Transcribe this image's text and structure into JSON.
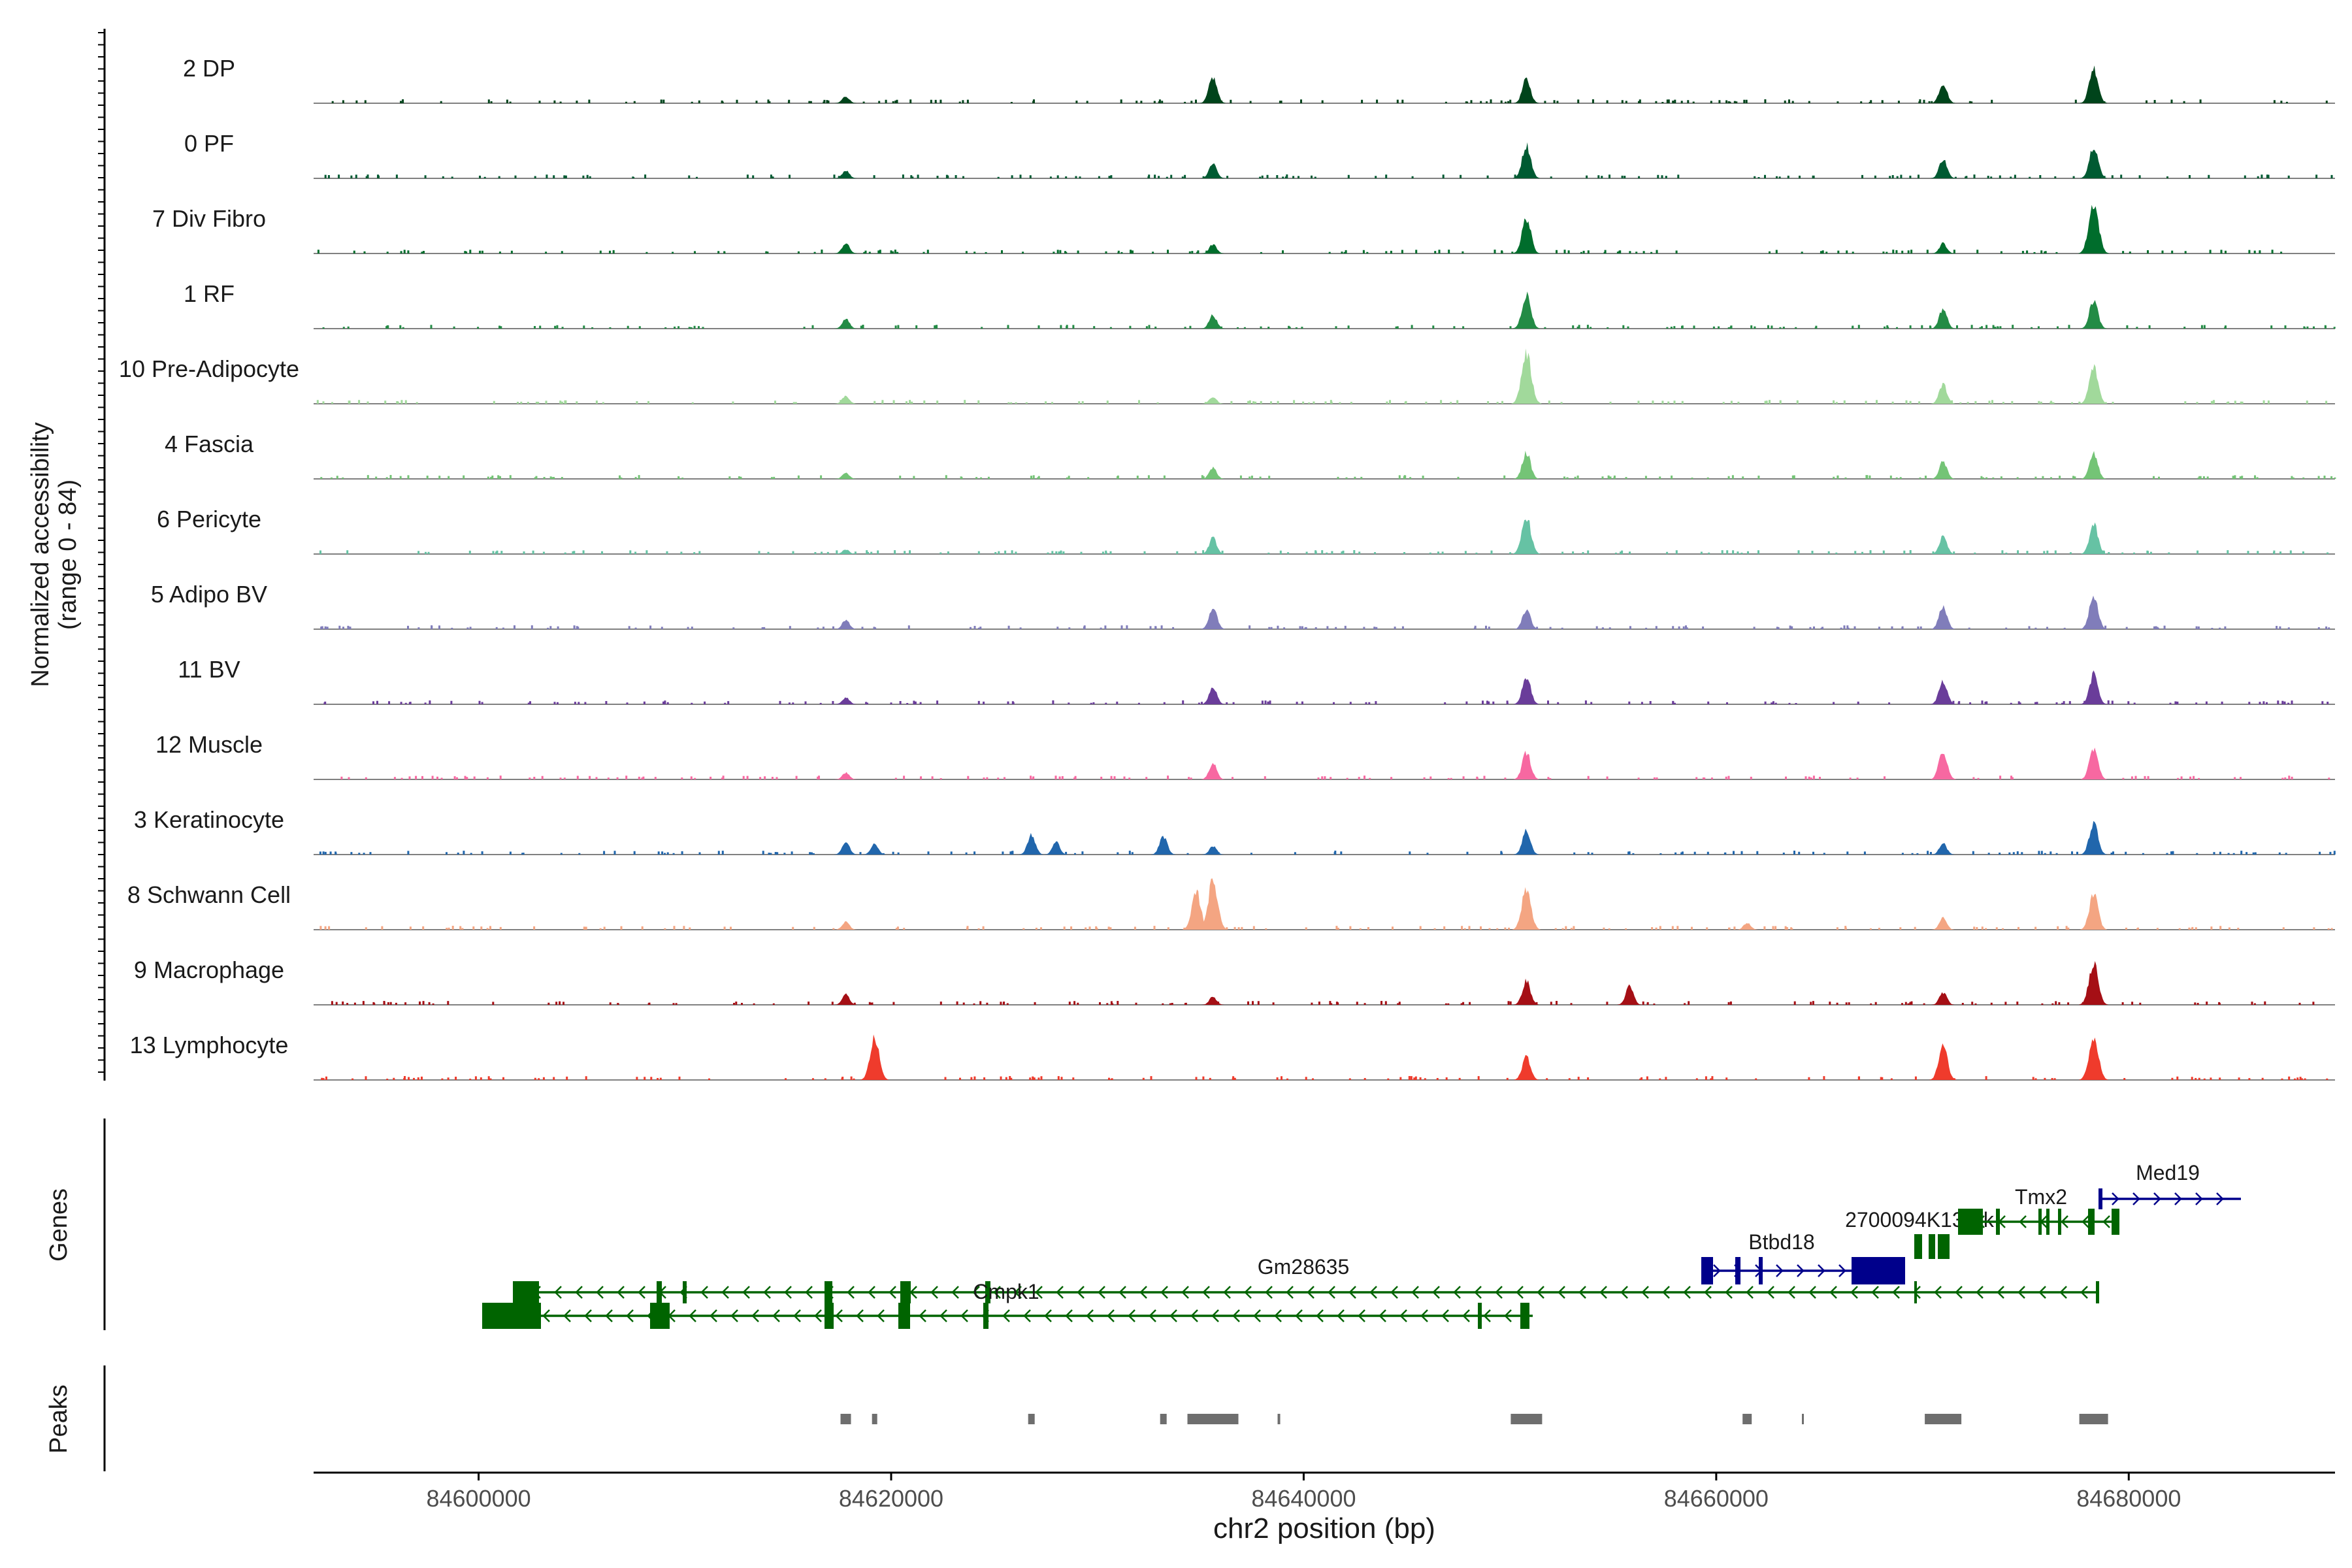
{
  "chart_data": {
    "type": "area",
    "title": "",
    "ylabel": "Normalized accessibility",
    "ylabel_range": "(range 0 - 84)",
    "ylim": [
      0,
      84
    ],
    "xlabel": "chr2 position (bp)",
    "xlim": [
      84592000,
      84690000
    ],
    "xticks": [
      84600000,
      84620000,
      84640000,
      84660000,
      84680000
    ],
    "xtick_labels": [
      "84600000",
      "84620000",
      "84640000",
      "84660000",
      "84680000"
    ],
    "peak_positions": [
      84617800,
      84619200,
      84626800,
      84633200,
      84635600,
      84650800,
      84661500,
      84671000,
      84678300
    ],
    "series": [
      {
        "name": "2 DP",
        "color": "#00441b",
        "peaks": [
          {
            "x": 84617800,
            "h": 0.12
          },
          {
            "x": 84635600,
            "h": 0.45
          },
          {
            "x": 84650800,
            "h": 0.42
          },
          {
            "x": 84671000,
            "h": 0.35
          },
          {
            "x": 84678300,
            "h": 0.62
          }
        ]
      },
      {
        "name": "0 PF",
        "color": "#005a32",
        "peaks": [
          {
            "x": 84617800,
            "h": 0.14
          },
          {
            "x": 84635600,
            "h": 0.27
          },
          {
            "x": 84650800,
            "h": 0.58
          },
          {
            "x": 84671000,
            "h": 0.34
          },
          {
            "x": 84678300,
            "h": 0.58
          }
        ]
      },
      {
        "name": "7 Div Fibro",
        "color": "#006d2c",
        "peaks": [
          {
            "x": 84617800,
            "h": 0.18
          },
          {
            "x": 84635600,
            "h": 0.16
          },
          {
            "x": 84650800,
            "h": 0.62
          },
          {
            "x": 84671000,
            "h": 0.18
          },
          {
            "x": 84678300,
            "h": 0.88
          }
        ]
      },
      {
        "name": "1 RF",
        "color": "#238b45",
        "peaks": [
          {
            "x": 84617800,
            "h": 0.17
          },
          {
            "x": 84635600,
            "h": 0.24
          },
          {
            "x": 84650800,
            "h": 0.6
          },
          {
            "x": 84671000,
            "h": 0.35
          },
          {
            "x": 84678300,
            "h": 0.5
          }
        ]
      },
      {
        "name": "10 Pre-Adipocyte",
        "color": "#a1d99b",
        "peaks": [
          {
            "x": 84617800,
            "h": 0.14
          },
          {
            "x": 84635600,
            "h": 0.12
          },
          {
            "x": 84650800,
            "h": 0.88
          },
          {
            "x": 84671000,
            "h": 0.34
          },
          {
            "x": 84678300,
            "h": 0.64
          }
        ]
      },
      {
        "name": "4 Fascia",
        "color": "#74c476",
        "peaks": [
          {
            "x": 84617800,
            "h": 0.1
          },
          {
            "x": 84635600,
            "h": 0.2
          },
          {
            "x": 84650800,
            "h": 0.46
          },
          {
            "x": 84671000,
            "h": 0.3
          },
          {
            "x": 84678300,
            "h": 0.44
          }
        ]
      },
      {
        "name": "6 Pericyte",
        "color": "#66c2a4",
        "peaks": [
          {
            "x": 84617800,
            "h": 0.08
          },
          {
            "x": 84635600,
            "h": 0.28
          },
          {
            "x": 84650800,
            "h": 0.66
          },
          {
            "x": 84671000,
            "h": 0.3
          },
          {
            "x": 84678300,
            "h": 0.52
          }
        ]
      },
      {
        "name": "5 Adipo BV",
        "color": "#807dba",
        "peaks": [
          {
            "x": 84617800,
            "h": 0.16
          },
          {
            "x": 84635600,
            "h": 0.38
          },
          {
            "x": 84650800,
            "h": 0.35
          },
          {
            "x": 84671000,
            "h": 0.4
          },
          {
            "x": 84678300,
            "h": 0.58
          }
        ]
      },
      {
        "name": "11 BV",
        "color": "#6a3d9a",
        "peaks": [
          {
            "x": 84617800,
            "h": 0.12
          },
          {
            "x": 84635600,
            "h": 0.3
          },
          {
            "x": 84650800,
            "h": 0.48
          },
          {
            "x": 84671000,
            "h": 0.42
          },
          {
            "x": 84678300,
            "h": 0.52
          }
        ]
      },
      {
        "name": "12 Muscle",
        "color": "#f768a1",
        "peaks": [
          {
            "x": 84617800,
            "h": 0.12
          },
          {
            "x": 84635600,
            "h": 0.28
          },
          {
            "x": 84650800,
            "h": 0.48
          },
          {
            "x": 84671000,
            "h": 0.5
          },
          {
            "x": 84678300,
            "h": 0.55
          }
        ]
      },
      {
        "name": "3 Keratinocyte",
        "color": "#2166ac",
        "peaks": [
          {
            "x": 84617800,
            "h": 0.22
          },
          {
            "x": 84619200,
            "h": 0.2
          },
          {
            "x": 84626800,
            "h": 0.35
          },
          {
            "x": 84628000,
            "h": 0.22
          },
          {
            "x": 84633200,
            "h": 0.32
          },
          {
            "x": 84635600,
            "h": 0.15
          },
          {
            "x": 84650800,
            "h": 0.42
          },
          {
            "x": 84671000,
            "h": 0.2
          },
          {
            "x": 84678300,
            "h": 0.55
          }
        ]
      },
      {
        "name": "8 Schwann Cell",
        "color": "#f4a582",
        "peaks": [
          {
            "x": 84617800,
            "h": 0.14
          },
          {
            "x": 84634800,
            "h": 0.65
          },
          {
            "x": 84635600,
            "h": 0.85
          },
          {
            "x": 84650800,
            "h": 0.72
          },
          {
            "x": 84661500,
            "h": 0.12
          },
          {
            "x": 84671000,
            "h": 0.2
          },
          {
            "x": 84678300,
            "h": 0.62
          }
        ]
      },
      {
        "name": "9 Macrophage",
        "color": "#a50f15",
        "peaks": [
          {
            "x": 84617800,
            "h": 0.18
          },
          {
            "x": 84635600,
            "h": 0.14
          },
          {
            "x": 84650800,
            "h": 0.42
          },
          {
            "x": 84655800,
            "h": 0.32
          },
          {
            "x": 84671000,
            "h": 0.22
          },
          {
            "x": 84678300,
            "h": 0.75
          }
        ]
      },
      {
        "name": "13 Lymphocyte",
        "color": "#ef3b2c",
        "peaks": [
          {
            "x": 84619200,
            "h": 0.72
          },
          {
            "x": 84650800,
            "h": 0.42
          },
          {
            "x": 84671000,
            "h": 0.6
          },
          {
            "x": 84678300,
            "h": 0.78
          }
        ]
      }
    ],
    "genes": [
      {
        "name": "Cmpk1",
        "strand": "-",
        "start": 84600200,
        "end": 84677900,
        "color": "#006400"
      },
      {
        "name": "Gm28635",
        "strand": "-",
        "start": 84600000,
        "end": 84650600,
        "color": "#006400"
      },
      {
        "name": "Btbd18",
        "strand": "+",
        "start": 84659000,
        "end": 84668800,
        "color": "#00008b"
      },
      {
        "name": "2700094K13Rik",
        "strand": "-",
        "start": 84669000,
        "end": 84670500,
        "color": "#006400"
      },
      {
        "name": "Tmx2",
        "strand": "-",
        "start": 84671000,
        "end": 84679000,
        "color": "#006400"
      },
      {
        "name": "Med19",
        "strand": "+",
        "start": 84678600,
        "end": 84685000,
        "color": "#00008b"
      }
    ],
    "peaks_track_label": "Peaks",
    "genes_track_label": "Genes"
  }
}
